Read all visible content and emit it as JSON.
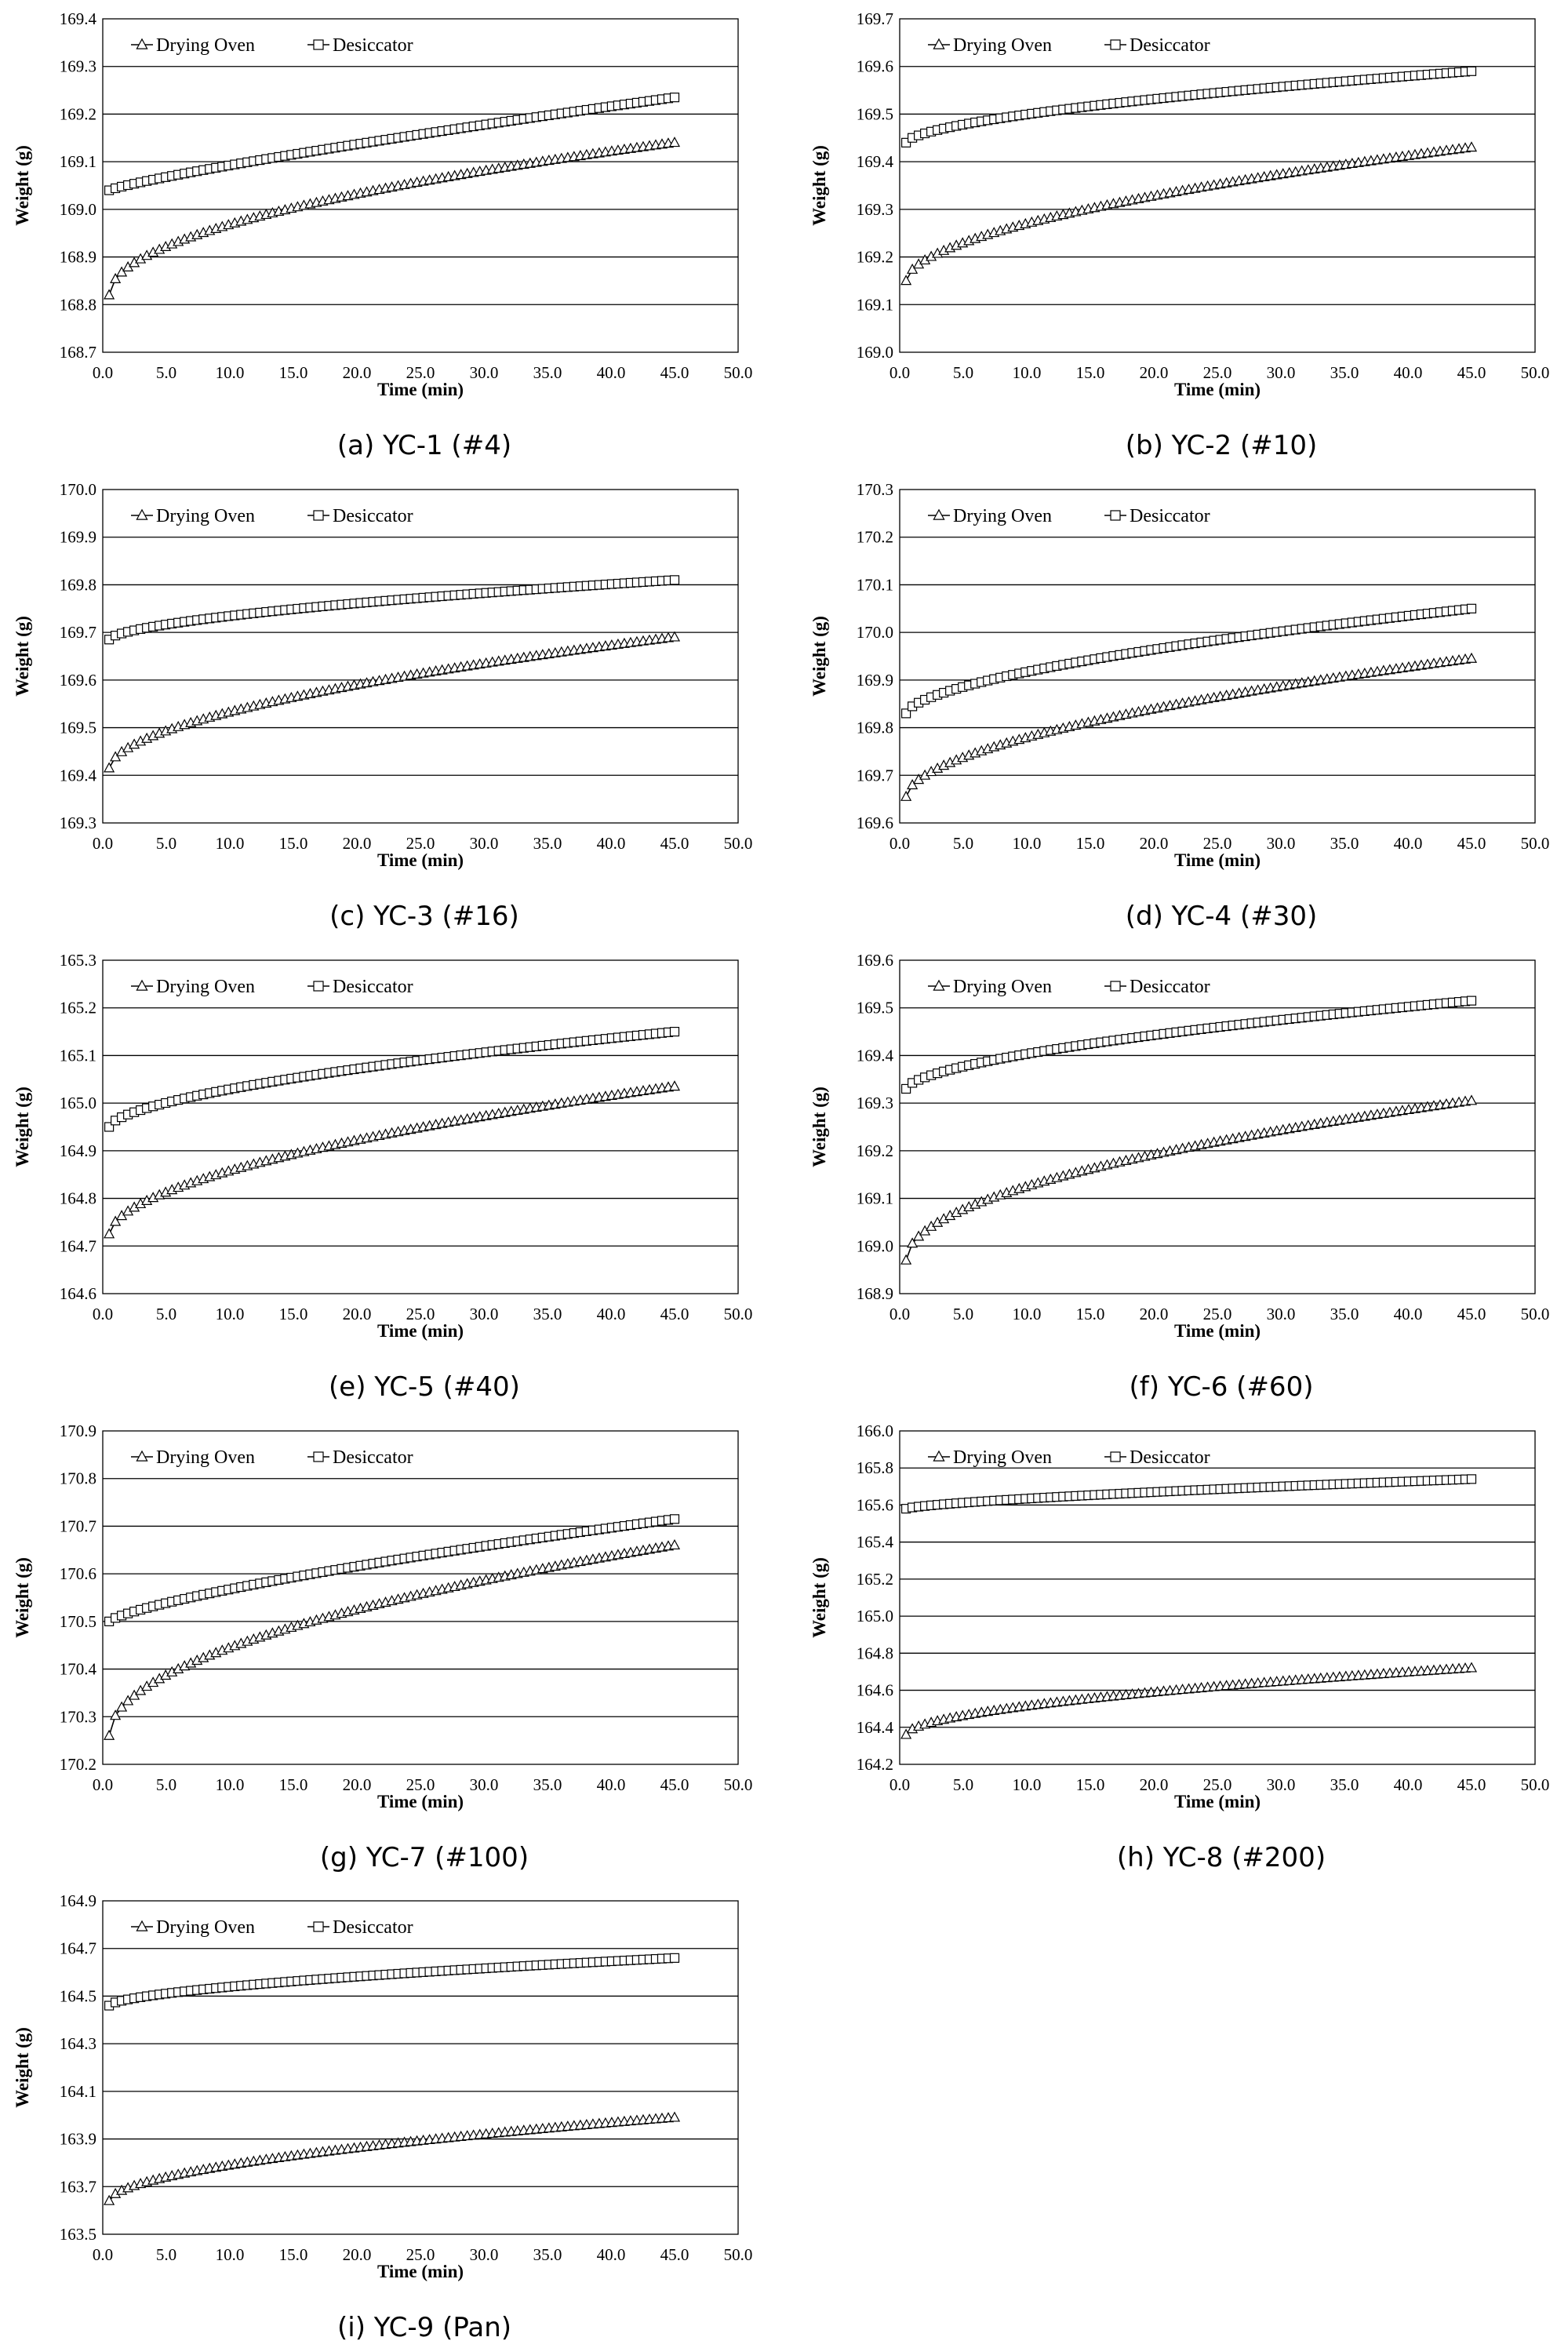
{
  "figure": {
    "legend": [
      "Drying Oven",
      "Desiccator"
    ],
    "x_axis_label": "Time (min)",
    "y_axis_label": "Weight (g)",
    "x_ticks": [
      "0.0",
      "5.0",
      "10.0",
      "15.0",
      "20.0",
      "25.0",
      "30.0",
      "35.0",
      "40.0",
      "45.0",
      "50.0"
    ]
  },
  "chart_data": [
    {
      "type": "line",
      "caption": "(a) YC-1 (#4)",
      "xlabel": "Time (min)",
      "ylabel": "Weight (g)",
      "xlim": [
        0,
        50
      ],
      "ylim": [
        168.7,
        169.4
      ],
      "y_ticks": [
        "168.7",
        "168.8",
        "168.9",
        "169.0",
        "169.1",
        "169.2",
        "169.3",
        "169.4"
      ],
      "grid": "horizontal",
      "legend_position": "top-left",
      "x_range": [
        0.5,
        45.0
      ],
      "series": [
        {
          "name": "Drying Oven",
          "marker": "triangle",
          "start": 168.82,
          "end": 169.14,
          "curve": 0.5
        },
        {
          "name": "Desiccator",
          "marker": "square",
          "start": 169.04,
          "end": 169.235,
          "curve": 0.85
        }
      ]
    },
    {
      "type": "line",
      "caption": "(b) YC-2 (#10)",
      "xlabel": "Time (min)",
      "ylabel": "Weight (g)",
      "xlim": [
        0,
        50
      ],
      "ylim": [
        169.0,
        169.7
      ],
      "y_ticks": [
        "169.0",
        "169.1",
        "169.2",
        "169.3",
        "169.4",
        "169.5",
        "169.6",
        "169.7"
      ],
      "grid": "horizontal",
      "legend_position": "top-left",
      "x_range": [
        0.5,
        45.0
      ],
      "series": [
        {
          "name": "Drying Oven",
          "marker": "triangle",
          "start": 169.15,
          "end": 169.43,
          "curve": 0.55
        },
        {
          "name": "Desiccator",
          "marker": "square",
          "start": 169.44,
          "end": 169.59,
          "curve": 0.6
        }
      ]
    },
    {
      "type": "line",
      "caption": "(c) YC-3 (#16)",
      "xlabel": "Time (min)",
      "ylabel": "Weight (g)",
      "xlim": [
        0,
        50
      ],
      "ylim": [
        169.3,
        170.0
      ],
      "y_ticks": [
        "169.3",
        "169.4",
        "169.5",
        "169.6",
        "169.7",
        "169.8",
        "169.9",
        "170.0"
      ],
      "grid": "horizontal",
      "legend_position": "top-left",
      "x_range": [
        0.5,
        45.0
      ],
      "series": [
        {
          "name": "Drying Oven",
          "marker": "triangle",
          "start": 169.415,
          "end": 169.69,
          "curve": 0.55
        },
        {
          "name": "Desiccator",
          "marker": "square",
          "start": 169.685,
          "end": 169.81,
          "curve": 0.6
        }
      ]
    },
    {
      "type": "line",
      "caption": "(d) YC-4 (#30)",
      "xlabel": "Time (min)",
      "ylabel": "Weight (g)",
      "xlim": [
        0,
        50
      ],
      "ylim": [
        169.6,
        170.3
      ],
      "y_ticks": [
        "169.6",
        "169.7",
        "169.8",
        "169.9",
        "170.0",
        "170.1",
        "170.2",
        "170.3"
      ],
      "grid": "horizontal",
      "legend_position": "top-left",
      "x_range": [
        0.5,
        45.0
      ],
      "series": [
        {
          "name": "Drying Oven",
          "marker": "triangle",
          "start": 169.655,
          "end": 169.945,
          "curve": 0.55
        },
        {
          "name": "Desiccator",
          "marker": "square",
          "start": 169.83,
          "end": 170.05,
          "curve": 0.6
        }
      ]
    },
    {
      "type": "line",
      "caption": "(e) YC-5 (#40)",
      "xlabel": "Time (min)",
      "ylabel": "Weight (g)",
      "xlim": [
        0,
        50
      ],
      "ylim": [
        164.6,
        165.3
      ],
      "y_ticks": [
        "164.6",
        "164.7",
        "164.8",
        "164.9",
        "165.0",
        "165.1",
        "165.2",
        "165.3"
      ],
      "grid": "horizontal",
      "legend_position": "top-left",
      "x_range": [
        0.5,
        45.0
      ],
      "series": [
        {
          "name": "Drying Oven",
          "marker": "triangle",
          "start": 164.725,
          "end": 165.035,
          "curve": 0.55
        },
        {
          "name": "Desiccator",
          "marker": "square",
          "start": 164.95,
          "end": 165.15,
          "curve": 0.6
        }
      ]
    },
    {
      "type": "line",
      "caption": "(f) YC-6 (#60)",
      "xlabel": "Time (min)",
      "ylabel": "Weight (g)",
      "xlim": [
        0,
        50
      ],
      "ylim": [
        168.9,
        169.6
      ],
      "y_ticks": [
        "168.9",
        "169.0",
        "169.1",
        "169.2",
        "169.3",
        "169.4",
        "169.5",
        "169.6"
      ],
      "grid": "horizontal",
      "legend_position": "top-left",
      "x_range": [
        0.5,
        45.0
      ],
      "series": [
        {
          "name": "Drying Oven",
          "marker": "triangle",
          "start": 168.97,
          "end": 169.305,
          "curve": 0.5
        },
        {
          "name": "Desiccator",
          "marker": "square",
          "start": 169.33,
          "end": 169.515,
          "curve": 0.6
        }
      ]
    },
    {
      "type": "line",
      "caption": "(g) YC-7 (#100)",
      "xlabel": "Time (min)",
      "ylabel": "Weight (g)",
      "xlim": [
        0,
        50
      ],
      "ylim": [
        170.2,
        170.9
      ],
      "y_ticks": [
        "170.2",
        "170.3",
        "170.4",
        "170.5",
        "170.6",
        "170.7",
        "170.8",
        "170.9"
      ],
      "grid": "horizontal",
      "legend_position": "top-left",
      "x_range": [
        0.5,
        45.0
      ],
      "series": [
        {
          "name": "Drying Oven",
          "marker": "triangle",
          "start": 170.26,
          "end": 170.66,
          "curve": 0.5
        },
        {
          "name": "Desiccator",
          "marker": "square",
          "start": 170.5,
          "end": 170.715,
          "curve": 0.75
        }
      ]
    },
    {
      "type": "line",
      "caption": "(h) YC-8 (#200)",
      "xlabel": "Time (min)",
      "ylabel": "Weight (g)",
      "xlim": [
        0,
        50
      ],
      "ylim": [
        164.2,
        166.0
      ],
      "y_ticks": [
        "164.2",
        "164.4",
        "164.6",
        "164.8",
        "165.0",
        "165.2",
        "165.4",
        "165.6",
        "165.8",
        "166.0"
      ],
      "grid": "horizontal",
      "legend_position": "top-left",
      "x_range": [
        0.5,
        45.0
      ],
      "series": [
        {
          "name": "Drying Oven",
          "marker": "triangle",
          "start": 164.36,
          "end": 164.72,
          "curve": 0.55
        },
        {
          "name": "Desiccator",
          "marker": "square",
          "start": 165.58,
          "end": 165.74,
          "curve": 0.7
        }
      ]
    },
    {
      "type": "line",
      "caption": "(i) YC-9 (Pan)",
      "xlabel": "Time (min)",
      "ylabel": "Weight (g)",
      "xlim": [
        0,
        50
      ],
      "ylim": [
        163.5,
        164.9
      ],
      "y_ticks": [
        "163.5",
        "163.7",
        "163.9",
        "164.1",
        "164.3",
        "164.5",
        "164.7",
        "164.9"
      ],
      "grid": "horizontal",
      "legend_position": "top-left",
      "x_range": [
        0.5,
        45.0
      ],
      "series": [
        {
          "name": "Drying Oven",
          "marker": "triangle",
          "start": 163.64,
          "end": 163.99,
          "curve": 0.55
        },
        {
          "name": "Desiccator",
          "marker": "square",
          "start": 164.46,
          "end": 164.66,
          "curve": 0.6
        }
      ]
    }
  ]
}
